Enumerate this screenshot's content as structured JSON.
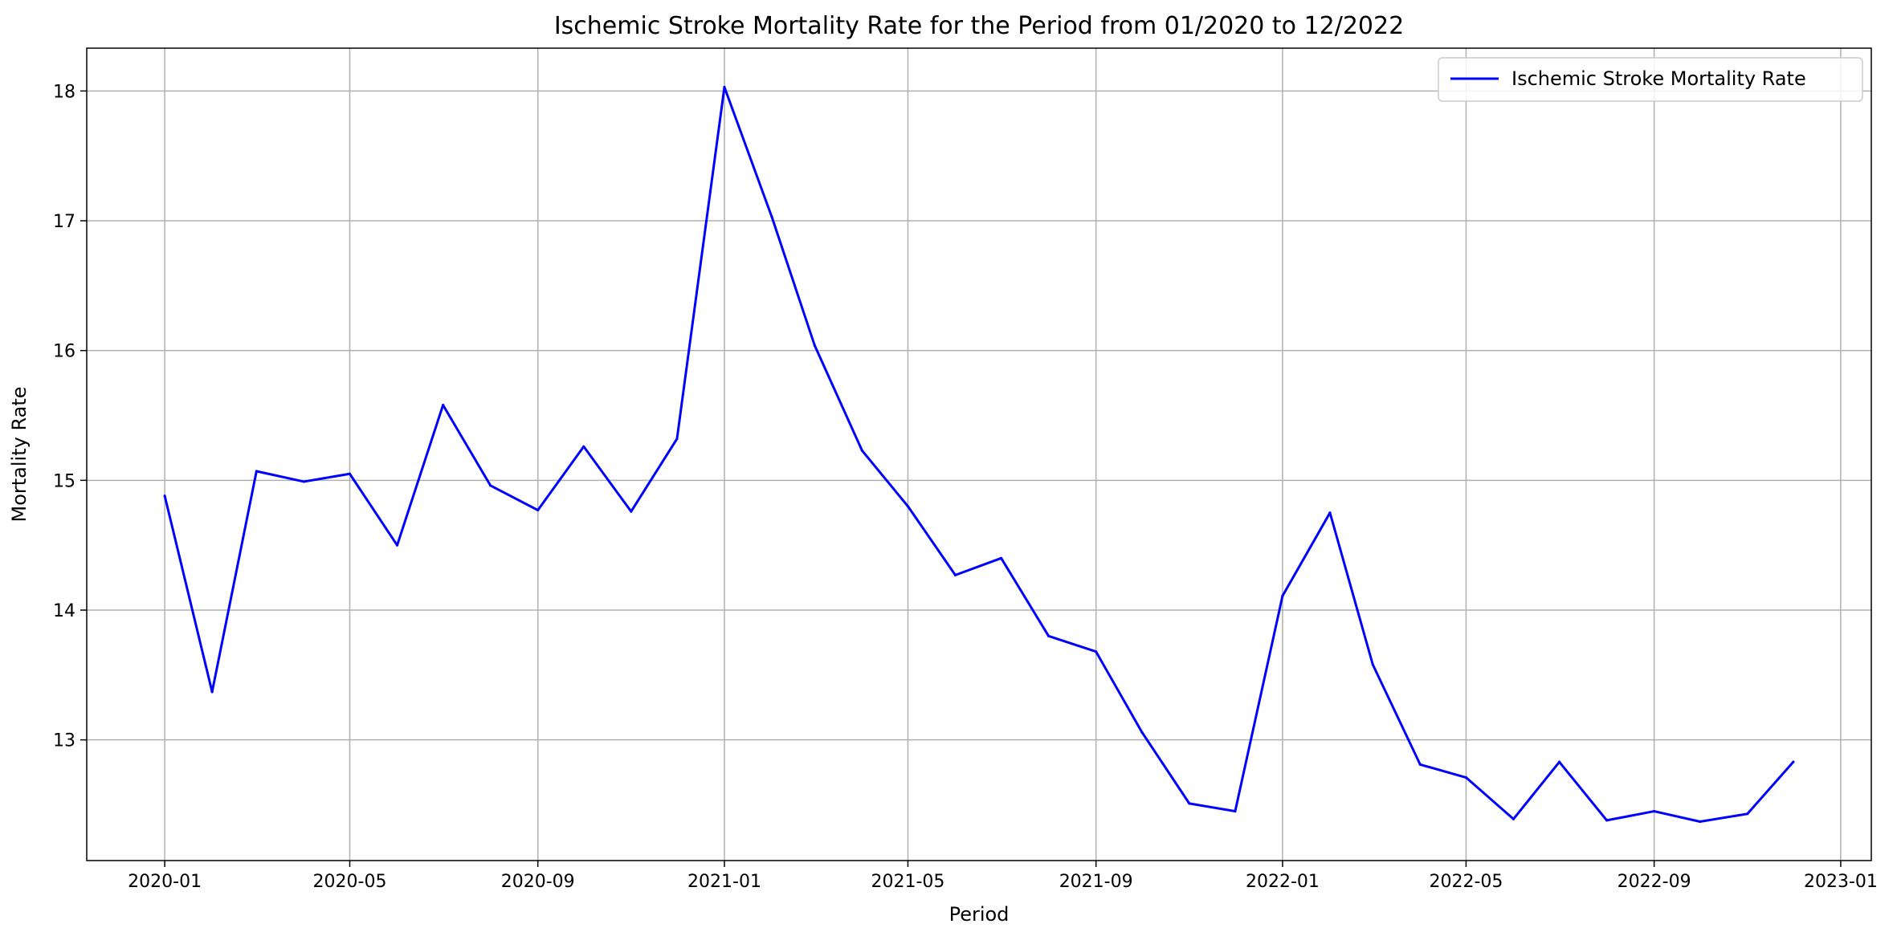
{
  "chart_data": {
    "type": "line",
    "title": "Ischemic Stroke Mortality Rate for the Period from 01/2020 to 12/2022",
    "xlabel": "Period",
    "ylabel": "Mortality Rate",
    "x": [
      "2020-01",
      "2020-02",
      "2020-03",
      "2020-04",
      "2020-05",
      "2020-06",
      "2020-07",
      "2020-08",
      "2020-09",
      "2020-10",
      "2020-11",
      "2020-12",
      "2021-01",
      "2021-02",
      "2021-03",
      "2021-04",
      "2021-05",
      "2021-06",
      "2021-07",
      "2021-08",
      "2021-09",
      "2021-10",
      "2021-11",
      "2021-12",
      "2022-01",
      "2022-02",
      "2022-03",
      "2022-04",
      "2022-05",
      "2022-06",
      "2022-07",
      "2022-08",
      "2022-09",
      "2022-10",
      "2022-11",
      "2022-12"
    ],
    "series": [
      {
        "name": "Ischemic Stroke Mortality Rate",
        "color": "#0000ff",
        "values": [
          14.88,
          13.37,
          15.07,
          14.99,
          15.05,
          14.5,
          15.58,
          14.96,
          14.77,
          15.26,
          14.76,
          15.32,
          18.03,
          17.03,
          16.04,
          15.23,
          14.8,
          14.27,
          14.4,
          13.8,
          13.68,
          13.06,
          12.51,
          12.45,
          14.11,
          14.75,
          13.58,
          12.81,
          12.71,
          12.39,
          12.83,
          12.38,
          12.45,
          12.37,
          12.43,
          12.83
        ]
      }
    ],
    "xticks": [
      "2020-01",
      "2020-05",
      "2020-09",
      "2021-01",
      "2021-05",
      "2021-09",
      "2022-01",
      "2022-05",
      "2022-09",
      "2023-01"
    ],
    "yticks": [
      13,
      14,
      15,
      16,
      17,
      18
    ],
    "xlim": [
      "2019-11-11",
      "2023-01-21"
    ],
    "ylim": [
      12.07,
      18.33
    ],
    "grid": true,
    "legend_position": "top-right"
  }
}
